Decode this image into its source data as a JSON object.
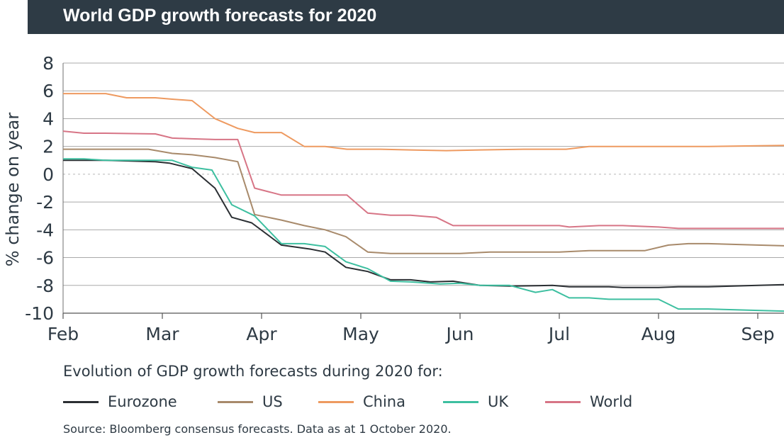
{
  "title": "World GDP growth forecasts for 2020",
  "subtitle": "Evolution of GDP growth forecasts during 2020 for:",
  "source": "Source: Bloomberg consensus forecasts. Data as at 1 October 2020.",
  "chart_data": {
    "type": "line",
    "ylabel": "% change on year",
    "ylim": [
      -10,
      8
    ],
    "yticks": [
      8,
      6,
      4,
      2,
      0,
      -2,
      -4,
      -6,
      -8,
      -10
    ],
    "xlim": [
      0,
      7.52
    ],
    "xticks": [
      {
        "label": "Feb",
        "x": 0
      },
      {
        "label": "Mar",
        "x": 1
      },
      {
        "label": "Apr",
        "x": 2
      },
      {
        "label": "May",
        "x": 3
      },
      {
        "label": "Jun",
        "x": 4
      },
      {
        "label": "Jul",
        "x": 5
      },
      {
        "label": "Aug",
        "x": 6
      },
      {
        "label": "Sep",
        "x": 7
      }
    ],
    "grid": "horizontal",
    "zero_line": "dotted",
    "series": [
      {
        "name": "Eurozone",
        "color": "#2b2f33",
        "points": [
          [
            0,
            1.0
          ],
          [
            0.43,
            1.0
          ],
          [
            0.93,
            0.9
          ],
          [
            1.07,
            0.8
          ],
          [
            1.3,
            0.4
          ],
          [
            1.53,
            -1.0
          ],
          [
            1.7,
            -3.1
          ],
          [
            1.9,
            -3.5
          ],
          [
            2.2,
            -5.1
          ],
          [
            2.5,
            -5.4
          ],
          [
            2.64,
            -5.6
          ],
          [
            2.85,
            -6.7
          ],
          [
            3.07,
            -7.0
          ],
          [
            3.3,
            -7.6
          ],
          [
            3.5,
            -7.6
          ],
          [
            3.7,
            -7.75
          ],
          [
            3.93,
            -7.7
          ],
          [
            4.2,
            -8.0
          ],
          [
            4.5,
            -8.05
          ],
          [
            4.93,
            -8.0
          ],
          [
            5.1,
            -8.1
          ],
          [
            5.5,
            -8.1
          ],
          [
            5.64,
            -8.15
          ],
          [
            6.0,
            -8.15
          ],
          [
            6.2,
            -8.1
          ],
          [
            6.5,
            -8.1
          ],
          [
            7.0,
            -8.0
          ],
          [
            7.52,
            -7.9
          ]
        ]
      },
      {
        "name": "US",
        "color": "#a88a6b",
        "points": [
          [
            0,
            1.8
          ],
          [
            0.43,
            1.8
          ],
          [
            0.86,
            1.8
          ],
          [
            1.1,
            1.5
          ],
          [
            1.3,
            1.4
          ],
          [
            1.53,
            1.2
          ],
          [
            1.76,
            0.9
          ],
          [
            1.93,
            -2.9
          ],
          [
            2.2,
            -3.3
          ],
          [
            2.43,
            -3.7
          ],
          [
            2.64,
            -4.0
          ],
          [
            2.85,
            -4.5
          ],
          [
            3.07,
            -5.6
          ],
          [
            3.3,
            -5.7
          ],
          [
            3.64,
            -5.7
          ],
          [
            4.0,
            -5.7
          ],
          [
            4.3,
            -5.6
          ],
          [
            4.64,
            -5.6
          ],
          [
            5.0,
            -5.6
          ],
          [
            5.3,
            -5.5
          ],
          [
            5.64,
            -5.5
          ],
          [
            5.86,
            -5.5
          ],
          [
            6.1,
            -5.1
          ],
          [
            6.3,
            -5.0
          ],
          [
            6.5,
            -5.0
          ],
          [
            7.0,
            -5.1
          ],
          [
            7.52,
            -5.2
          ]
        ]
      },
      {
        "name": "China",
        "color": "#ee9a60",
        "points": [
          [
            0,
            5.8
          ],
          [
            0.43,
            5.8
          ],
          [
            0.64,
            5.5
          ],
          [
            0.93,
            5.5
          ],
          [
            1.1,
            5.4
          ],
          [
            1.3,
            5.3
          ],
          [
            1.53,
            4.0
          ],
          [
            1.76,
            3.3
          ],
          [
            1.93,
            3.0
          ],
          [
            2.2,
            3.0
          ],
          [
            2.43,
            2.0
          ],
          [
            2.64,
            2.0
          ],
          [
            2.86,
            1.8
          ],
          [
            3.2,
            1.8
          ],
          [
            3.5,
            1.75
          ],
          [
            3.86,
            1.7
          ],
          [
            4.2,
            1.75
          ],
          [
            4.64,
            1.8
          ],
          [
            5.07,
            1.8
          ],
          [
            5.3,
            2.0
          ],
          [
            5.64,
            2.0
          ],
          [
            6.0,
            2.0
          ],
          [
            6.5,
            2.0
          ],
          [
            7.0,
            2.05
          ],
          [
            7.52,
            2.1
          ]
        ]
      },
      {
        "name": "UK",
        "color": "#3dbfa0",
        "points": [
          [
            0,
            1.1
          ],
          [
            0.21,
            1.1
          ],
          [
            0.43,
            1.0
          ],
          [
            0.64,
            1.0
          ],
          [
            0.86,
            1.0
          ],
          [
            1.1,
            1.0
          ],
          [
            1.3,
            0.5
          ],
          [
            1.5,
            0.3
          ],
          [
            1.7,
            -2.2
          ],
          [
            1.93,
            -3.0
          ],
          [
            2.2,
            -5.0
          ],
          [
            2.43,
            -5.0
          ],
          [
            2.64,
            -5.2
          ],
          [
            2.85,
            -6.3
          ],
          [
            3.07,
            -6.8
          ],
          [
            3.3,
            -7.7
          ],
          [
            3.5,
            -7.75
          ],
          [
            3.8,
            -7.9
          ],
          [
            4.0,
            -7.85
          ],
          [
            4.2,
            -8.0
          ],
          [
            4.5,
            -8.0
          ],
          [
            4.76,
            -8.5
          ],
          [
            4.93,
            -8.3
          ],
          [
            5.1,
            -8.9
          ],
          [
            5.3,
            -8.9
          ],
          [
            5.5,
            -9.0
          ],
          [
            5.86,
            -9.0
          ],
          [
            6.0,
            -9.0
          ],
          [
            6.2,
            -9.7
          ],
          [
            6.5,
            -9.7
          ],
          [
            7.0,
            -9.8
          ],
          [
            7.52,
            -9.9
          ]
        ]
      },
      {
        "name": "World",
        "color": "#d77586",
        "points": [
          [
            0,
            3.1
          ],
          [
            0.21,
            2.95
          ],
          [
            0.43,
            2.95
          ],
          [
            0.93,
            2.9
          ],
          [
            1.1,
            2.6
          ],
          [
            1.3,
            2.55
          ],
          [
            1.53,
            2.5
          ],
          [
            1.76,
            2.5
          ],
          [
            1.93,
            -1.0
          ],
          [
            2.2,
            -1.5
          ],
          [
            2.43,
            -1.5
          ],
          [
            2.64,
            -1.5
          ],
          [
            2.86,
            -1.5
          ],
          [
            3.07,
            -2.8
          ],
          [
            3.3,
            -2.95
          ],
          [
            3.5,
            -2.95
          ],
          [
            3.76,
            -3.1
          ],
          [
            3.93,
            -3.7
          ],
          [
            4.2,
            -3.7
          ],
          [
            4.64,
            -3.7
          ],
          [
            5.0,
            -3.7
          ],
          [
            5.1,
            -3.8
          ],
          [
            5.4,
            -3.7
          ],
          [
            5.64,
            -3.7
          ],
          [
            6.0,
            -3.8
          ],
          [
            6.2,
            -3.9
          ],
          [
            6.5,
            -3.9
          ],
          [
            7.0,
            -3.9
          ],
          [
            7.52,
            -3.9
          ]
        ]
      }
    ]
  }
}
